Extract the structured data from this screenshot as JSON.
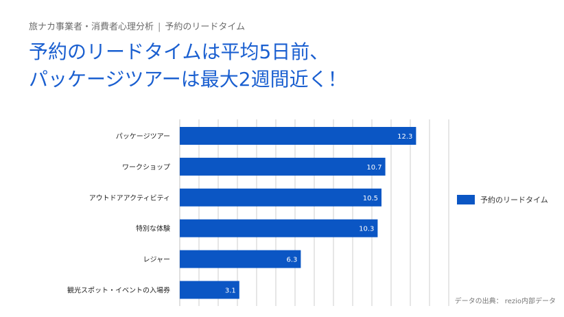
{
  "breadcrumb": {
    "part1": "旅ナカ事業者・消費者心理分析",
    "separator": "|",
    "part2": "予約のリードタイム"
  },
  "headline": {
    "line1": "予約のリードタイムは平均5日前、",
    "line2": "パッケージツアーは最大2週間近く！"
  },
  "source": "データの出典： rezio内部データ",
  "colors": {
    "bar": "#0b56c4",
    "title": "#1a5fd0",
    "grid": "#cccccc"
  },
  "chart_data": {
    "type": "bar",
    "orientation": "horizontal",
    "categories": [
      "パッケージツアー",
      "ワークショップ",
      "アウトドアアクティビティ",
      "特別な体験",
      "レジャー",
      "観光スポット・イベントの入場券"
    ],
    "series": [
      {
        "name": "予約のリードタイム",
        "values": [
          12.3,
          10.7,
          10.5,
          10.3,
          6.3,
          3.1
        ]
      }
    ],
    "xlim": [
      0,
      14
    ],
    "grid": true,
    "legend_position": "right"
  }
}
